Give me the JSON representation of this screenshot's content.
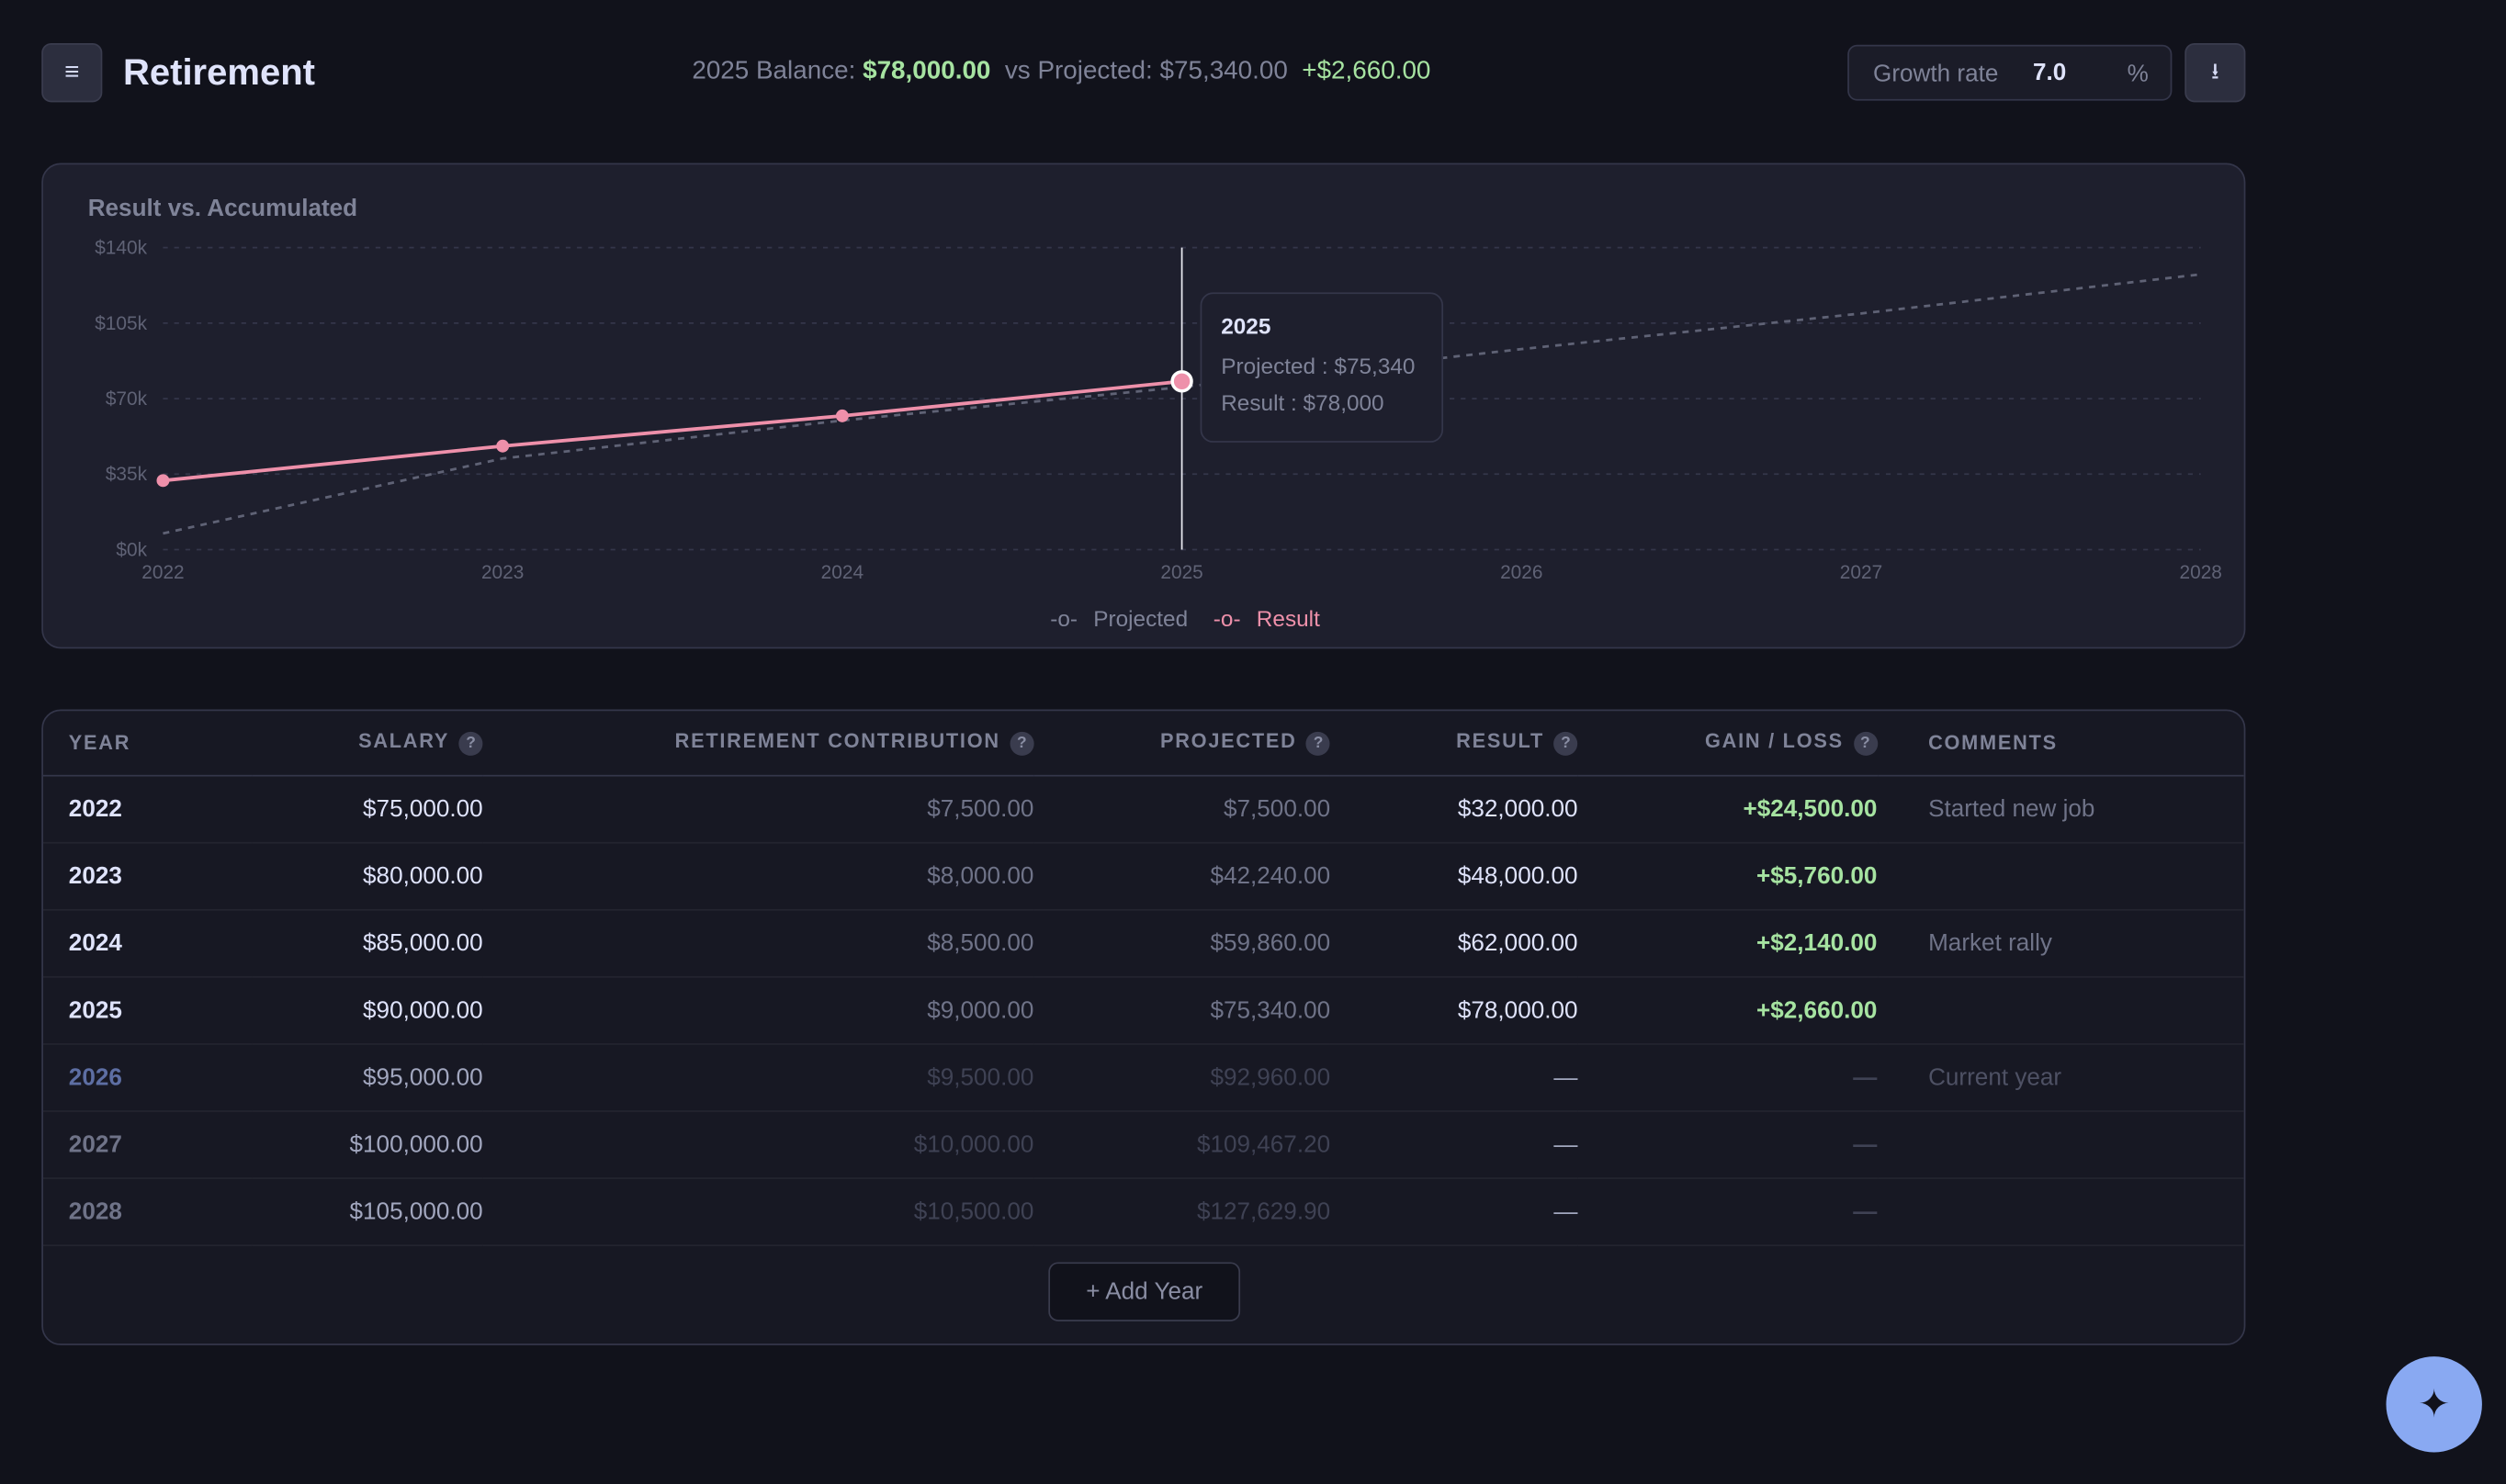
{
  "header": {
    "menu_icon": "hamburger-icon",
    "title": "Retirement",
    "summary": {
      "balance_label": "2025 Balance:",
      "balance_value": "$78,000.00",
      "projected_label": "vs Projected:",
      "projected_value": "$75,340.00",
      "diff": "+$2,660.00"
    },
    "growth_rate": {
      "label": "Growth rate",
      "value": "7.0",
      "unit": "%"
    },
    "download_icon": "download-icon"
  },
  "colors": {
    "result": "#ee90aa",
    "projected": "#5f6275",
    "positive": "#a6e3a1",
    "accent": "#89a9f2"
  },
  "chart_data": {
    "type": "line",
    "title": "Result vs. Accumulated",
    "x": [
      2022,
      2023,
      2024,
      2025,
      2026,
      2027,
      2028
    ],
    "x_tick_labels": [
      "2022",
      "2023",
      "2024",
      "2025",
      "2026",
      "2027",
      "2028"
    ],
    "y_tick_labels": [
      "$0k",
      "$35k",
      "$70k",
      "$105k",
      "$140k"
    ],
    "y_ticks": [
      0,
      35000,
      70000,
      105000,
      140000
    ],
    "ylim": [
      0,
      140000
    ],
    "grid": true,
    "legend_position": "bottom",
    "series": [
      {
        "name": "Projected",
        "style": "dashed",
        "values": [
          7500,
          42240,
          59860,
          75340,
          92960,
          109467.2,
          127629.9
        ]
      },
      {
        "name": "Result",
        "style": "solid",
        "values": [
          32000,
          48000,
          62000,
          78000,
          null,
          null,
          null
        ]
      }
    ],
    "tooltip": {
      "year": "2025",
      "projected": "Projected : $75,340",
      "result": "Result : $78,000"
    }
  },
  "table": {
    "headers": [
      "YEAR",
      "SALARY",
      "RETIREMENT CONTRIBUTION",
      "PROJECTED",
      "RESULT",
      "GAIN / LOSS",
      "COMMENTS"
    ],
    "help_glyph": "?",
    "rows": [
      {
        "year": "2022",
        "salary": "$75,000.00",
        "contribution": "$7,500.00",
        "projected": "$7,500.00",
        "result": "$32,000.00",
        "gain": "+$24,500.00",
        "comment": "Started new job"
      },
      {
        "year": "2023",
        "salary": "$80,000.00",
        "contribution": "$8,000.00",
        "projected": "$42,240.00",
        "result": "$48,000.00",
        "gain": "+$5,760.00",
        "comment": ""
      },
      {
        "year": "2024",
        "salary": "$85,000.00",
        "contribution": "$8,500.00",
        "projected": "$59,860.00",
        "result": "$62,000.00",
        "gain": "+$2,140.00",
        "comment": "Market rally"
      },
      {
        "year": "2025",
        "salary": "$90,000.00",
        "contribution": "$9,000.00",
        "projected": "$75,340.00",
        "result": "$78,000.00",
        "gain": "+$2,660.00",
        "comment": ""
      },
      {
        "year": "2026",
        "salary": "$95,000.00",
        "contribution": "$9,500.00",
        "projected": "$92,960.00",
        "result": "—",
        "gain": "—",
        "comment": "Current year"
      },
      {
        "year": "2027",
        "salary": "$100,000.00",
        "contribution": "$10,000.00",
        "projected": "$109,467.20",
        "result": "—",
        "gain": "—",
        "comment": ""
      },
      {
        "year": "2028",
        "salary": "$105,000.00",
        "contribution": "$10,500.00",
        "projected": "$127,629.90",
        "result": "—",
        "gain": "—",
        "comment": ""
      }
    ],
    "add_label": "+ Add Year"
  },
  "fab_icon": "sparkle-icon"
}
